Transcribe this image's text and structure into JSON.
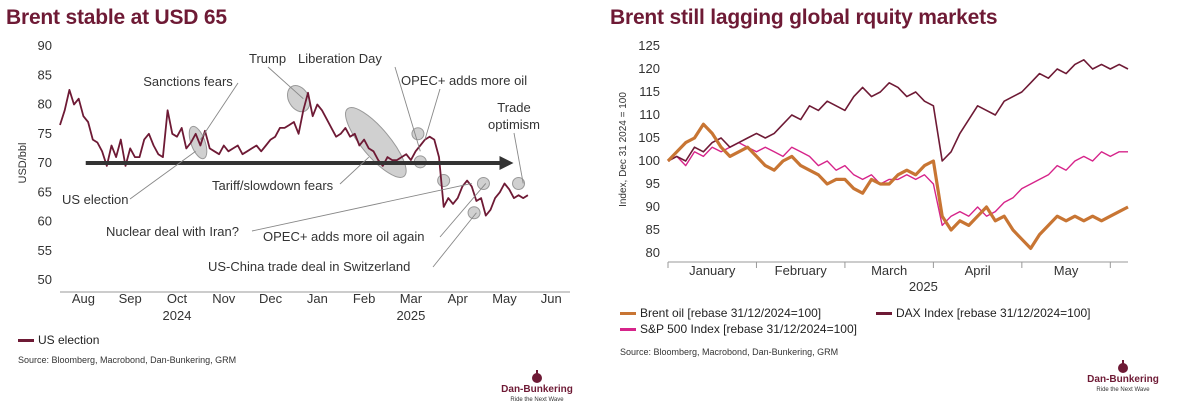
{
  "left": {
    "title": "Brent stable at USD 65",
    "source": "Source: Bloomberg, Macrobond, Dan-Bunkering, GRM",
    "legend_label": "US election",
    "logo_name": "Dan-Bunkering",
    "logo_tag": "Ride the Next Wave"
  },
  "right": {
    "title": "Brent still lagging global rquity markets",
    "source": "Source: Bloomberg, Macrobond, Dan-Bunkering, GRM",
    "logo_name": "Dan-Bunkering",
    "logo_tag": "Ride the Next Wave",
    "legend": [
      {
        "label": "Brent oil [rebase 31/12/2024=100]",
        "color": "#c87533"
      },
      {
        "label": "DAX Index [rebase 31/12/2024=100]",
        "color": "#6e1a35"
      },
      {
        "label": "S&P 500 Index [rebase 31/12/2024=100]",
        "color": "#d6248a"
      }
    ]
  },
  "colors": {
    "brand": "#6e1a35",
    "brent": "#c87533",
    "dax": "#6e1a35",
    "spx": "#d6248a",
    "trend_arrow": "#333333"
  },
  "chart_data": [
    {
      "type": "line",
      "title": "Brent stable at USD 65",
      "ylabel": "USD/bbl",
      "ylim": [
        50,
        90
      ],
      "yticks": [
        50,
        55,
        60,
        65,
        70,
        75,
        80,
        85,
        90
      ],
      "xlim": [
        0,
        10.9
      ],
      "xticks": [
        {
          "pos": 0.5,
          "label": "Aug"
        },
        {
          "pos": 1.5,
          "label": "Sep"
        },
        {
          "pos": 2.5,
          "label": "Oct"
        },
        {
          "pos": 3.5,
          "label": "Nov"
        },
        {
          "pos": 4.5,
          "label": "Dec"
        },
        {
          "pos": 5.5,
          "label": "Jan"
        },
        {
          "pos": 6.5,
          "label": "Feb"
        },
        {
          "pos": 7.5,
          "label": "Mar"
        },
        {
          "pos": 8.5,
          "label": "Apr"
        },
        {
          "pos": 9.5,
          "label": "May"
        },
        {
          "pos": 10.5,
          "label": "Jun"
        }
      ],
      "year_labels": [
        {
          "pos": 2.5,
          "label": "2024"
        },
        {
          "pos": 7.5,
          "label": "2025"
        }
      ],
      "series": [
        {
          "name": "US election",
          "x": [
            0.0,
            0.1,
            0.2,
            0.3,
            0.4,
            0.5,
            0.6,
            0.7,
            0.8,
            0.9,
            1.0,
            1.1,
            1.2,
            1.3,
            1.4,
            1.5,
            1.6,
            1.7,
            1.8,
            1.9,
            2.0,
            2.1,
            2.2,
            2.3,
            2.4,
            2.5,
            2.6,
            2.7,
            2.8,
            2.9,
            3.0,
            3.1,
            3.2,
            3.3,
            3.4,
            3.5,
            3.6,
            3.7,
            3.8,
            3.9,
            4.0,
            4.1,
            4.2,
            4.3,
            4.4,
            4.5,
            4.6,
            4.7,
            4.8,
            4.9,
            5.0,
            5.1,
            5.2,
            5.3,
            5.4,
            5.5,
            5.6,
            5.7,
            5.8,
            5.9,
            6.0,
            6.1,
            6.2,
            6.3,
            6.4,
            6.5,
            6.6,
            6.7,
            6.8,
            6.9,
            7.0,
            7.1,
            7.2,
            7.3,
            7.4,
            7.5,
            7.6,
            7.7,
            7.8,
            7.9,
            8.0,
            8.1,
            8.2,
            8.3,
            8.4,
            8.5,
            8.6,
            8.7,
            8.8,
            8.9,
            9.0,
            9.1,
            9.2,
            9.3,
            9.4,
            9.5,
            9.6,
            9.7,
            9.8,
            9.9,
            10.0
          ],
          "values": [
            76.5,
            79,
            82.5,
            80,
            81,
            78,
            77,
            74,
            73.5,
            72,
            69.5,
            73,
            71,
            74,
            69.5,
            72.5,
            71,
            71,
            74,
            75,
            73,
            71.5,
            71,
            79,
            75,
            74.5,
            76,
            72.5,
            73.5,
            75,
            73,
            75.5,
            72.5,
            72,
            71.5,
            73,
            72,
            72.5,
            73,
            71.5,
            72,
            72.5,
            73,
            72,
            73,
            74,
            74.5,
            76,
            76,
            76.5,
            77,
            75,
            79,
            82,
            78,
            80,
            79,
            77.5,
            76,
            74.5,
            75,
            76,
            74.5,
            75,
            73,
            74,
            72.5,
            72,
            70.5,
            69.5,
            71,
            70.5,
            70.5,
            71,
            71.5,
            70.5,
            72,
            73,
            74,
            74.5,
            74,
            71,
            62.5,
            64,
            63,
            64,
            66,
            67,
            66,
            63.5,
            64,
            61,
            62,
            64,
            65,
            66.5,
            65.5,
            64,
            64.5,
            64,
            64.5
          ]
        }
      ],
      "trend_line": {
        "from": [
          0.55,
          70
        ],
        "to": [
          9.65,
          70
        ]
      },
      "annotations": [
        {
          "text": "Sanctions fears",
          "target": [
            3.0,
            74
          ]
        },
        {
          "text": "Trump",
          "target": [
            5.2,
            81
          ]
        },
        {
          "text": "Liberation Day",
          "target": [
            7.7,
            72
          ]
        },
        {
          "text": "OPEC+ adds more oil",
          "target": [
            7.8,
            74
          ]
        },
        {
          "text": "Trade",
          "target": [
            9.9,
            66.5
          ]
        },
        {
          "text": "optimism",
          "target": [
            9.9,
            66.5
          ]
        },
        {
          "text": "US election",
          "target": [
            2.9,
            72
          ]
        },
        {
          "text": "Tariff/slowdown fears",
          "target": [
            6.6,
            71
          ]
        },
        {
          "text": "Nuclear deal with Iran?",
          "target": [
            8.8,
            66.5
          ]
        },
        {
          "text": "OPEC+ adds more oil again",
          "target": [
            9.1,
            66.5
          ]
        },
        {
          "text": "US-China trade deal in Switzerland",
          "target": [
            8.9,
            61.5
          ]
        }
      ]
    },
    {
      "type": "line",
      "title": "Brent still lagging global rquity markets",
      "ylabel": "Index, Dec 31 2024 = 100",
      "ylim": [
        80,
        125
      ],
      "yticks": [
        80,
        85,
        90,
        95,
        100,
        105,
        110,
        115,
        120,
        125
      ],
      "xlim": [
        0,
        5.2
      ],
      "xticks": [
        {
          "pos": 0.5,
          "label": "January"
        },
        {
          "pos": 1.5,
          "label": "February"
        },
        {
          "pos": 2.5,
          "label": "March"
        },
        {
          "pos": 3.5,
          "label": "April"
        },
        {
          "pos": 4.5,
          "label": "May"
        }
      ],
      "year_labels": [
        {
          "pos": 3.0,
          "label": "2025"
        }
      ],
      "x": [
        0.0,
        0.1,
        0.2,
        0.3,
        0.4,
        0.5,
        0.6,
        0.7,
        0.8,
        0.9,
        1.0,
        1.1,
        1.2,
        1.3,
        1.4,
        1.5,
        1.6,
        1.7,
        1.8,
        1.9,
        2.0,
        2.1,
        2.2,
        2.3,
        2.4,
        2.5,
        2.6,
        2.7,
        2.8,
        2.9,
        3.0,
        3.1,
        3.2,
        3.3,
        3.4,
        3.5,
        3.6,
        3.7,
        3.8,
        3.9,
        4.0,
        4.1,
        4.2,
        4.3,
        4.4,
        4.5,
        4.6,
        4.7,
        4.8,
        4.9,
        5.0,
        5.1,
        5.2
      ],
      "series": [
        {
          "name": "Brent oil [rebase 31/12/2024=100]",
          "values": [
            100,
            102,
            104,
            105,
            108,
            106,
            103,
            101,
            102,
            103,
            101,
            99,
            98,
            100,
            101,
            99,
            98,
            97,
            95,
            96,
            96,
            94,
            93,
            96,
            95,
            95,
            97,
            98,
            97,
            99,
            100,
            88,
            85,
            87,
            86,
            88,
            90,
            87,
            88,
            85,
            83,
            81,
            84,
            86,
            88,
            87,
            88,
            87,
            88,
            87,
            88,
            89,
            90
          ]
        },
        {
          "name": "DAX Index [rebase 31/12/2024=100]",
          "values": [
            100,
            101,
            100,
            103,
            102,
            104,
            105,
            103,
            104,
            105,
            106,
            105,
            106,
            108,
            110,
            109,
            112,
            111,
            113,
            112,
            111,
            114,
            116,
            114,
            115,
            117,
            116,
            114,
            115,
            113,
            112,
            100,
            102,
            106,
            109,
            112,
            111,
            110,
            113,
            114,
            115,
            117,
            119,
            118,
            120,
            119,
            121,
            122,
            120,
            121,
            120,
            121,
            120
          ]
        },
        {
          "name": "S&P 500 Index [rebase 31/12/2024=100]",
          "values": [
            100,
            101,
            99,
            102,
            101,
            103,
            102,
            103,
            104,
            103,
            102,
            103,
            102,
            101,
            103,
            102,
            101,
            99,
            100,
            98,
            99,
            97,
            96,
            97,
            95,
            96,
            96,
            97,
            96,
            97,
            95,
            86,
            88,
            89,
            88,
            90,
            88,
            89,
            91,
            92,
            94,
            95,
            96,
            97,
            99,
            98,
            100,
            101,
            100,
            102,
            101,
            102,
            102
          ]
        }
      ]
    }
  ]
}
